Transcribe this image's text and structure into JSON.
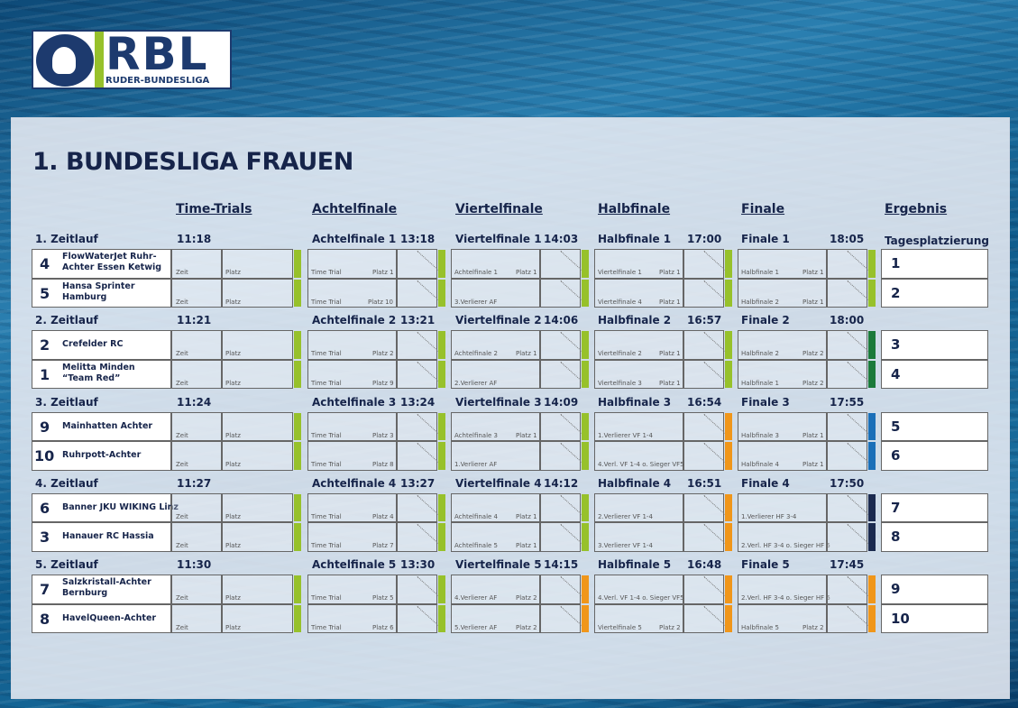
{
  "logo": {
    "text": "RBL",
    "subtitle": "RUDER-BUNDESLIGA"
  },
  "title": "1. BUNDESLIGA FRAUEN",
  "columns": {
    "tt": "Time-Trials",
    "af": "Achtelfinale",
    "vf": "Viertelfinale",
    "hf": "Halbfinale",
    "f": "Finale",
    "result": "Ergebnis",
    "result_sub": "Tagesplatzierung"
  },
  "labels": {
    "zeit": "Zeit",
    "platz": "Platz"
  },
  "colors": {
    "lime": "#97c12b",
    "darkgreen": "#1b7a3a",
    "blue": "#1a6fb8",
    "navy": "#1b2a4f",
    "orange": "#f0961a"
  },
  "groups": [
    {
      "tt": {
        "name": "1. Zeitlauf",
        "time": "11:18",
        "teams": [
          {
            "num": "4",
            "name": "FlowWaterJet Ruhr-\nAchter Essen Ketwig"
          },
          {
            "num": "5",
            "name": "Hansa Sprinter\nHamburg"
          }
        ],
        "color": "lime"
      },
      "af": {
        "name": "Achtelfinale 1",
        "time": "13:18",
        "rows": [
          [
            "Time Trial",
            "Platz 1"
          ],
          [
            "Time Trial",
            "Platz 10"
          ]
        ],
        "color": "lime"
      },
      "vf": {
        "name": "Viertelfinale 1",
        "time": "14:03",
        "rows": [
          [
            "Achtelfinale 1",
            "Platz 1"
          ],
          [
            "3.Verlierer AF",
            ""
          ]
        ],
        "color": "lime"
      },
      "hf": {
        "name": "Halbfinale 1",
        "time": "17:00",
        "rows": [
          [
            "Viertelfinale 1",
            "Platz 1"
          ],
          [
            "Viertelfinale 4",
            "Platz 1"
          ]
        ],
        "color": "lime"
      },
      "f": {
        "name": "Finale 1",
        "time": "18:05",
        "rows": [
          [
            "Halbfinale 1",
            "Platz 1"
          ],
          [
            "Halbfinale 2",
            "Platz 1"
          ]
        ],
        "color": "lime"
      },
      "results": [
        "1",
        "2"
      ]
    },
    {
      "tt": {
        "name": "2. Zeitlauf",
        "time": "11:21",
        "teams": [
          {
            "num": "2",
            "name": "Crefelder RC"
          },
          {
            "num": "1",
            "name": "Melitta Minden\n“Team Red”"
          }
        ],
        "color": "lime"
      },
      "af": {
        "name": "Achtelfinale 2",
        "time": "13:21",
        "rows": [
          [
            "Time Trial",
            "Platz 2"
          ],
          [
            "Time Trial",
            "Platz 9"
          ]
        ],
        "color": "lime"
      },
      "vf": {
        "name": "Viertelfinale 2",
        "time": "14:06",
        "rows": [
          [
            "Achtelfinale 2",
            "Platz 1"
          ],
          [
            "2.Verlierer AF",
            ""
          ]
        ],
        "color": "lime"
      },
      "hf": {
        "name": "Halbfinale 2",
        "time": "16:57",
        "rows": [
          [
            "Viertelfinale 2",
            "Platz 1"
          ],
          [
            "Viertelfinale 3",
            "Platz 1"
          ]
        ],
        "color": "lime"
      },
      "f": {
        "name": "Finale 2",
        "time": "18:00",
        "rows": [
          [
            "Halbfinale 2",
            "Platz 2"
          ],
          [
            "Halbfinale 1",
            "Platz 2"
          ]
        ],
        "color": "darkgreen"
      },
      "results": [
        "3",
        "4"
      ]
    },
    {
      "tt": {
        "name": "3. Zeitlauf",
        "time": "11:24",
        "teams": [
          {
            "num": "9",
            "name": "Mainhatten Achter"
          },
          {
            "num": "10",
            "name": "Ruhrpott-Achter"
          }
        ],
        "color": "lime"
      },
      "af": {
        "name": "Achtelfinale 3",
        "time": "13:24",
        "rows": [
          [
            "Time Trial",
            "Platz 3"
          ],
          [
            "Time Trial",
            "Platz 8"
          ]
        ],
        "color": "lime"
      },
      "vf": {
        "name": "Viertelfinale 3",
        "time": "14:09",
        "rows": [
          [
            "Achtelfinale 3",
            "Platz 1"
          ],
          [
            "1.Verlierer AF",
            ""
          ]
        ],
        "color": "lime"
      },
      "hf": {
        "name": "Halbfinale 3",
        "time": "16:54",
        "rows": [
          [
            "1.Verlierer VF 1-4",
            ""
          ],
          [
            "4.Verl. VF 1-4 o. Sieger VF5",
            ""
          ]
        ],
        "color": "orange"
      },
      "f": {
        "name": "Finale 3",
        "time": "17:55",
        "rows": [
          [
            "Halbfinale 3",
            "Platz 1"
          ],
          [
            "Halbfinale 4",
            "Platz 1"
          ]
        ],
        "color": "blue"
      },
      "results": [
        "5",
        "6"
      ]
    },
    {
      "tt": {
        "name": "4. Zeitlauf",
        "time": "11:27",
        "teams": [
          {
            "num": "6",
            "name": "Banner JKU WIKING Linz"
          },
          {
            "num": "3",
            "name": "Hanauer RC Hassia"
          }
        ],
        "color": "lime"
      },
      "af": {
        "name": "Achtelfinale 4",
        "time": "13:27",
        "rows": [
          [
            "Time Trial",
            "Platz 4"
          ],
          [
            "Time Trial",
            "Platz 7"
          ]
        ],
        "color": "lime"
      },
      "vf": {
        "name": "Viertelfinale 4",
        "time": "14:12",
        "rows": [
          [
            "Achtelfinale 4",
            "Platz 1"
          ],
          [
            "Achtelfinale 5",
            "Platz 1"
          ]
        ],
        "color": "lime"
      },
      "hf": {
        "name": "Halbfinale 4",
        "time": "16:51",
        "rows": [
          [
            "2.Verlierer VF 1-4",
            ""
          ],
          [
            "3.Verlierer VF 1-4",
            ""
          ]
        ],
        "color": "orange"
      },
      "f": {
        "name": "Finale 4",
        "time": "17:50",
        "rows": [
          [
            "1.Verlierer HF 3-4",
            ""
          ],
          [
            "2.Verl. HF 3-4 o. Sieger HF 5",
            ""
          ]
        ],
        "color": "navy"
      },
      "results": [
        "7",
        "8"
      ]
    },
    {
      "tt": {
        "name": "5. Zeitlauf",
        "time": "11:30",
        "teams": [
          {
            "num": "7",
            "name": "Salzkristall-Achter\nBernburg"
          },
          {
            "num": "8",
            "name": "HavelQueen-Achter"
          }
        ],
        "color": "lime"
      },
      "af": {
        "name": "Achtelfinale 5",
        "time": "13:30",
        "rows": [
          [
            "Time Trial",
            "Platz 5"
          ],
          [
            "Time Trial",
            "Platz 6"
          ]
        ],
        "color": "lime"
      },
      "vf": {
        "name": "Viertelfinale 5",
        "time": "14:15",
        "rows": [
          [
            "4.Verlierer AF",
            "Platz 2"
          ],
          [
            "5.Verlierer AF",
            "Platz 2"
          ]
        ],
        "color": "orange"
      },
      "hf": {
        "name": "Halbfinale 5",
        "time": "16:48",
        "rows": [
          [
            "4.Verl. VF 1-4 o. Sieger VF5",
            ""
          ],
          [
            "Viertelfinale 5",
            "Platz 2"
          ]
        ],
        "color": "orange"
      },
      "f": {
        "name": "Finale 5",
        "time": "17:45",
        "rows": [
          [
            "2.Verl. HF 3-4 o. Sieger HF 5",
            ""
          ],
          [
            "Halbfinale 5",
            "Platz 2"
          ]
        ],
        "color": "orange"
      },
      "results": [
        "9",
        "10"
      ]
    }
  ]
}
